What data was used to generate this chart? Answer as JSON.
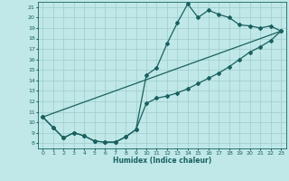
{
  "title": "",
  "xlabel": "Humidex (Indice chaleur)",
  "bg_color": "#c0e8e8",
  "grid_color": "#a0cccc",
  "line_color": "#1a6060",
  "xlim": [
    -0.5,
    23.5
  ],
  "ylim": [
    7.5,
    21.5
  ],
  "xticks": [
    0,
    1,
    2,
    3,
    4,
    5,
    6,
    7,
    8,
    9,
    10,
    11,
    12,
    13,
    14,
    15,
    16,
    17,
    18,
    19,
    20,
    21,
    22,
    23
  ],
  "yticks": [
    8,
    9,
    10,
    11,
    12,
    13,
    14,
    15,
    16,
    17,
    18,
    19,
    20,
    21
  ],
  "series1_x": [
    0,
    1,
    2,
    3,
    4,
    5,
    6,
    7,
    8,
    9,
    10,
    11,
    12,
    13,
    14,
    15,
    16,
    17,
    18,
    19,
    20,
    21,
    22,
    23
  ],
  "series1_y": [
    10.5,
    9.5,
    8.5,
    9.0,
    8.7,
    8.2,
    8.1,
    8.1,
    8.6,
    9.3,
    14.5,
    15.2,
    17.5,
    19.5,
    21.3,
    20.0,
    20.7,
    20.3,
    20.0,
    19.3,
    19.2,
    19.0,
    19.2,
    18.7
  ],
  "series2_x": [
    0,
    1,
    2,
    3,
    4,
    5,
    6,
    7,
    8,
    9,
    10,
    11,
    12,
    13,
    14,
    15,
    16,
    17,
    18,
    19,
    20,
    21,
    22,
    23
  ],
  "series2_y": [
    10.5,
    9.5,
    8.5,
    9.0,
    8.7,
    8.2,
    8.1,
    8.1,
    8.6,
    9.3,
    11.8,
    12.3,
    12.5,
    12.8,
    13.2,
    13.7,
    14.2,
    14.7,
    15.3,
    16.0,
    16.7,
    17.2,
    17.8,
    18.7
  ],
  "line3_x": [
    0,
    23
  ],
  "line3_y": [
    10.5,
    18.7
  ]
}
